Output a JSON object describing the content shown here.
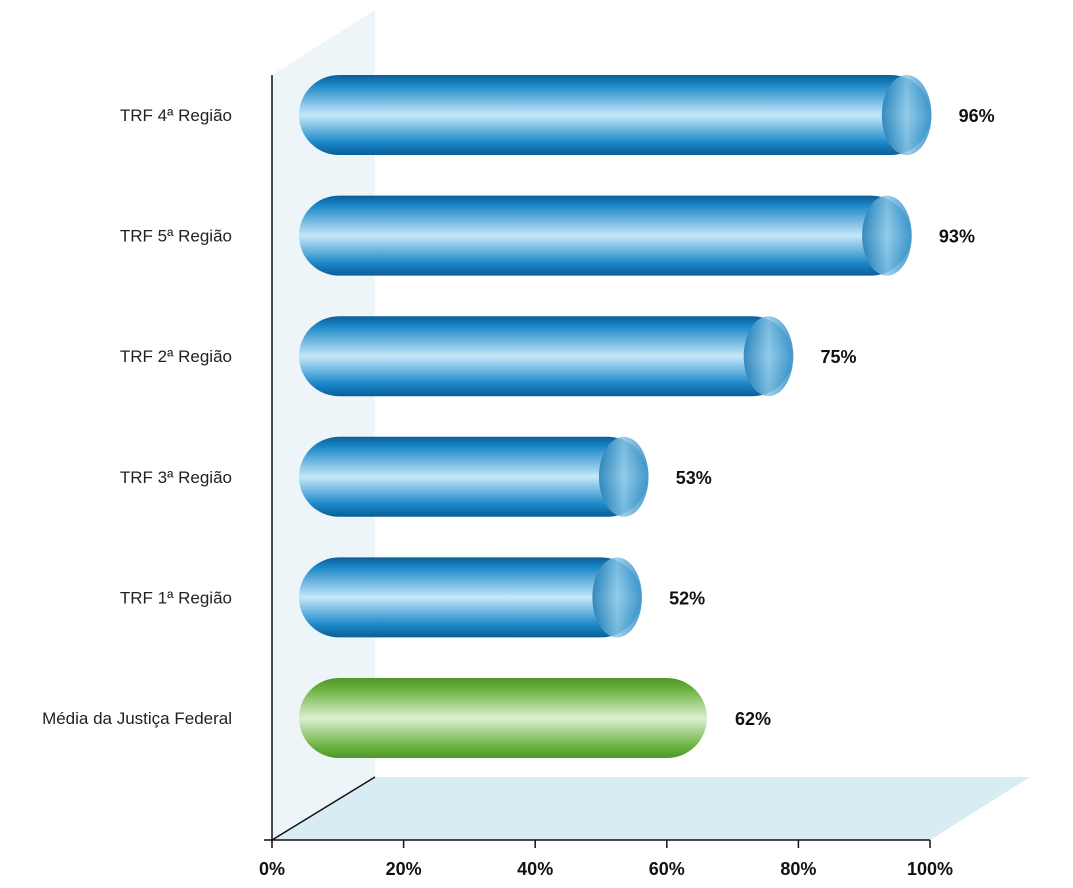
{
  "chart_data": {
    "type": "bar",
    "orientation": "horizontal",
    "categories": [
      "TRF 4ª Região",
      "TRF 5ª Região",
      "TRF 2ª Região",
      "TRF 3ª Região",
      "TRF 1ª Região",
      "Média da Justiça Federal"
    ],
    "values": [
      96,
      93,
      75,
      53,
      52,
      62
    ],
    "value_labels": [
      "96%",
      "93%",
      "75%",
      "53%",
      "52%",
      "62%"
    ],
    "highlight_category": "Média da Justiça Federal",
    "xlim": [
      0,
      100
    ],
    "x_ticks": [
      "0%",
      "20%",
      "40%",
      "60%",
      "80%",
      "100%"
    ],
    "title": "",
    "xlabel": "",
    "ylabel": "",
    "grid": false,
    "colors": {
      "bar": "#1a86c8",
      "bar_light": "#c5e8f8",
      "bar_dark": "#0b5e96",
      "highlight": "#6cb43f",
      "highlight_light": "#dcefd2",
      "highlight_dark": "#4f962b",
      "wall": "#eef5f8",
      "floor": "#d8ecf3",
      "axis": "#111111"
    }
  }
}
